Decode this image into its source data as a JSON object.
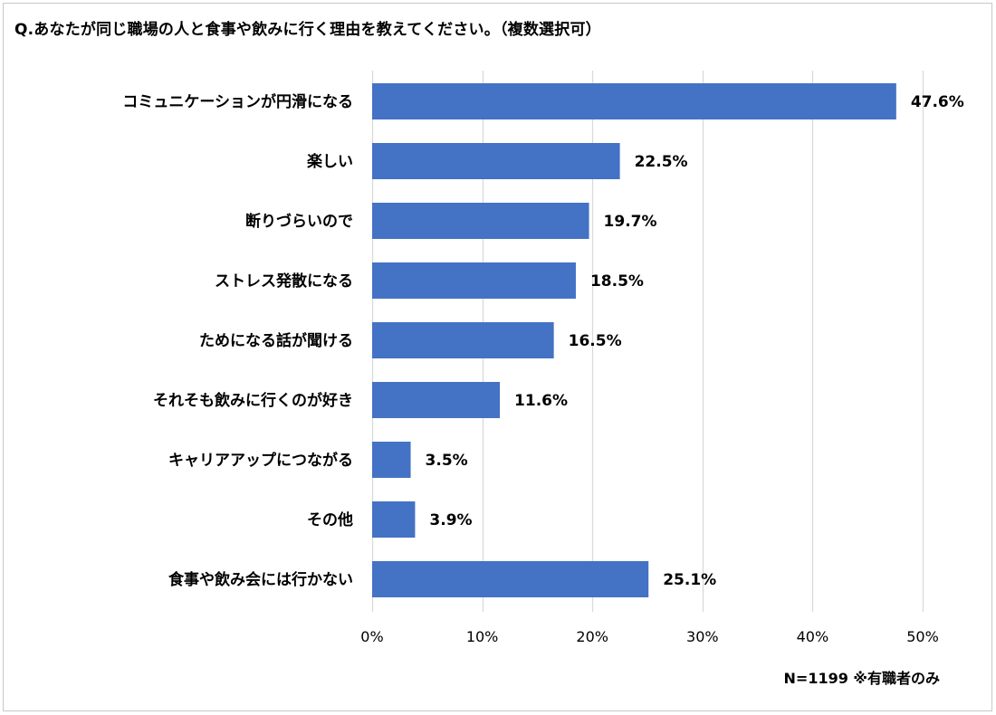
{
  "title": "Q.あなたが同じ職場の人と食事や飲みに行く理由を教えてください。（複数選択可）",
  "note": "N=1199 ※有職者のみ",
  "colors": {
    "bar": "#4472c4",
    "grid": "#d9d9d9",
    "text": "#000000"
  },
  "chart_data": {
    "type": "bar",
    "orientation": "horizontal",
    "categories": [
      "コミュニケーションが円滑になる",
      "楽しい",
      "断りづらいので",
      "ストレス発散になる",
      "ためになる話が聞ける",
      "それそも飲みに行くのが好き",
      "キャリアアップにつながる",
      "その他",
      "食事や飲み会には行かない"
    ],
    "values": [
      47.6,
      22.5,
      19.7,
      18.5,
      16.5,
      11.6,
      3.5,
      3.9,
      25.1
    ],
    "value_labels": [
      "47.6%",
      "22.5%",
      "19.7%",
      "18.5%",
      "16.5%",
      "11.6%",
      "3.5%",
      "3.9%",
      "25.1%"
    ],
    "xlim": [
      0,
      50
    ],
    "xticks": [
      0,
      10,
      20,
      30,
      40,
      50
    ],
    "xtick_labels": [
      "0%",
      "10%",
      "20%",
      "30%",
      "40%",
      "50%"
    ],
    "grid": true
  }
}
